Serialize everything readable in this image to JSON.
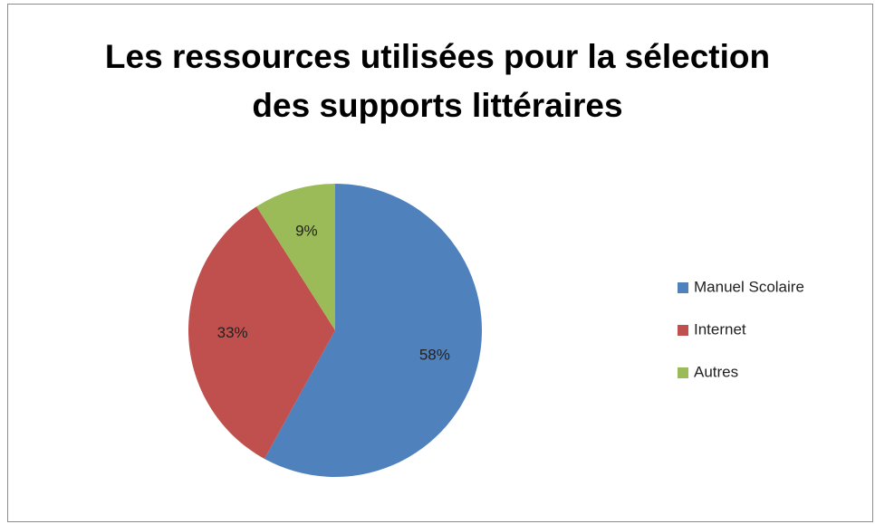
{
  "chart_data": {
    "type": "pie",
    "title": "Les ressources utilisées pour la sélection des supports littéraires",
    "categories": [
      "Manuel Scolaire",
      "Internet",
      "Autres"
    ],
    "values": [
      58,
      33,
      9
    ],
    "value_labels": [
      "58%",
      "33%",
      "9%"
    ],
    "colors": [
      "#4f81bd",
      "#c0504d",
      "#9bbb59"
    ],
    "legend": "right"
  }
}
